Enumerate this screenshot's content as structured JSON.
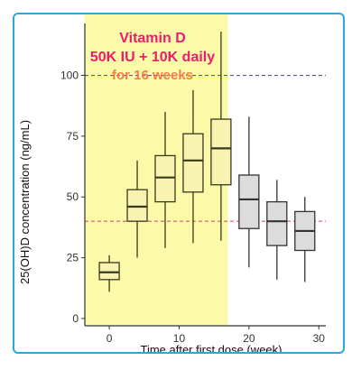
{
  "colors": {
    "frame_border": "#29a8e0",
    "highlight": "#fafaa8",
    "title_primary": "#ee1c6e",
    "title_secondary": "#f47c4c",
    "box_fill_highlight": "#f8f3b0",
    "box_fill_after": "#dcdcdc",
    "ref_line_upper": "#5555aa",
    "ref_line_lower": "#dd5566"
  },
  "chart_data": {
    "type": "boxplot",
    "title_lines": [
      "Vitamin D",
      "50K IU + 10K daily",
      "for 16 weeks"
    ],
    "xlabel": "Time after first dose (week)",
    "ylabel": "25(OH)D concentration (ng/mL)",
    "xlim": [
      -3.5,
      31
    ],
    "ylim": [
      -3,
      108
    ],
    "xticks": [
      0,
      10,
      20,
      30
    ],
    "yticks": [
      0,
      25,
      50,
      75,
      100
    ],
    "highlight_span": [
      -3.5,
      17
    ],
    "reference_lines": [
      {
        "y": 100,
        "color": "#5555aa"
      },
      {
        "y": 40,
        "color": "#dd5566"
      }
    ],
    "boxes": [
      {
        "x": 0,
        "min": 11,
        "q1": 16,
        "median": 19,
        "q3": 23,
        "max": 26,
        "group": "highlight"
      },
      {
        "x": 4,
        "min": 25,
        "q1": 40,
        "median": 46,
        "q3": 53,
        "max": 65,
        "group": "highlight"
      },
      {
        "x": 8,
        "min": 29,
        "q1": 48,
        "median": 58,
        "q3": 67,
        "max": 85,
        "group": "highlight"
      },
      {
        "x": 12,
        "min": 31,
        "q1": 52,
        "median": 65,
        "q3": 76,
        "max": 94,
        "group": "highlight"
      },
      {
        "x": 16,
        "min": 32,
        "q1": 55,
        "median": 70,
        "q3": 82,
        "max": 118,
        "group": "highlight"
      },
      {
        "x": 20,
        "min": 21,
        "q1": 37,
        "median": 49,
        "q3": 59,
        "max": 83,
        "group": "after"
      },
      {
        "x": 24,
        "min": 16,
        "q1": 30,
        "median": 40,
        "q3": 48,
        "max": 57,
        "group": "after"
      },
      {
        "x": 28,
        "min": 15,
        "q1": 28,
        "median": 36,
        "q3": 44,
        "max": 50,
        "group": "after"
      }
    ]
  }
}
